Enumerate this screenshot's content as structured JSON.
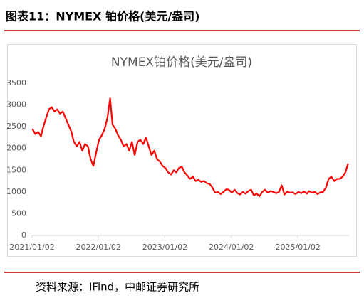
{
  "header": "图表11：NYMEX 铂价格(美元/盎司)",
  "source": "资料来源：IFind，中邮证券研究所",
  "chart_data": {
    "type": "line",
    "title": "NYMEX铂价格(美元/盎司)",
    "x": [
      "2021/01/04",
      "2021/01/20",
      "2021/02/05",
      "2021/02/20",
      "2021/03/05",
      "2021/03/20",
      "2021/04/05",
      "2021/04/20",
      "2021/05/05",
      "2021/05/20",
      "2021/06/05",
      "2021/06/20",
      "2021/07/05",
      "2021/07/20",
      "2021/08/05",
      "2021/08/20",
      "2021/09/05",
      "2021/09/20",
      "2021/10/05",
      "2021/10/20",
      "2021/11/05",
      "2021/11/20",
      "2021/12/05",
      "2021/12/20",
      "2022/01/05",
      "2022/01/20",
      "2022/02/05",
      "2022/02/20",
      "2022/03/07",
      "2022/03/20",
      "2022/04/05",
      "2022/04/20",
      "2022/05/05",
      "2022/05/20",
      "2022/06/05",
      "2022/06/20",
      "2022/07/05",
      "2022/07/20",
      "2022/08/05",
      "2022/08/20",
      "2022/09/05",
      "2022/09/20",
      "2022/10/05",
      "2022/10/20",
      "2022/11/05",
      "2022/11/20",
      "2022/12/05",
      "2022/12/20",
      "2023/01/05",
      "2023/01/20",
      "2023/02/05",
      "2023/02/20",
      "2023/03/05",
      "2023/03/20",
      "2023/04/05",
      "2023/04/20",
      "2023/05/05",
      "2023/05/20",
      "2023/06/05",
      "2023/06/20",
      "2023/07/05",
      "2023/07/20",
      "2023/08/05",
      "2023/08/20",
      "2023/09/05",
      "2023/09/20",
      "2023/10/05",
      "2023/10/20",
      "2023/11/05",
      "2023/11/20",
      "2023/12/05",
      "2023/12/20",
      "2024/01/05",
      "2024/01/20",
      "2024/02/05",
      "2024/02/20",
      "2024/03/05",
      "2024/03/20",
      "2024/04/05",
      "2024/04/20",
      "2024/05/05",
      "2024/05/20",
      "2024/06/05",
      "2024/06/20",
      "2024/07/05",
      "2024/07/20",
      "2024/08/05",
      "2024/08/20",
      "2024/09/05",
      "2024/09/20",
      "2024/10/05",
      "2024/10/20",
      "2024/11/05",
      "2024/11/20",
      "2024/12/05",
      "2024/12/20",
      "2025/01/05",
      "2025/01/20",
      "2025/02/05",
      "2025/02/20",
      "2025/03/05",
      "2025/03/20",
      "2025/04/05",
      "2025/04/20",
      "2025/05/05",
      "2025/05/20",
      "2025/06/05",
      "2025/06/20",
      "2025/07/05",
      "2025/07/20",
      "2025/08/05",
      "2025/08/20",
      "2025/09/05",
      "2025/09/20",
      "2025/10/05"
    ],
    "series": [
      {
        "name": "NYMEX铂价格",
        "color": "#ff0000",
        "values": [
          2450,
          2330,
          2380,
          2280,
          2500,
          2700,
          2900,
          2950,
          2850,
          2900,
          2800,
          2850,
          2700,
          2550,
          2400,
          2150,
          2050,
          2150,
          1950,
          2100,
          2050,
          1750,
          1600,
          1900,
          2200,
          2300,
          2450,
          2700,
          3150,
          2550,
          2450,
          2300,
          2200,
          2050,
          2100,
          1950,
          2150,
          1850,
          2150,
          2200,
          2100,
          2250,
          2050,
          1850,
          1950,
          1750,
          1700,
          1600,
          1550,
          1450,
          1400,
          1500,
          1450,
          1550,
          1580,
          1450,
          1380,
          1300,
          1350,
          1250,
          1280,
          1230,
          1250,
          1200,
          1180,
          1100,
          980,
          1000,
          950,
          1000,
          1060,
          1050,
          980,
          1050,
          970,
          940,
          1000,
          960,
          1020,
          1050,
          920,
          960,
          900,
          1000,
          1050,
          980,
          1020,
          1000,
          970,
          1000,
          1150,
          940,
          1010,
          980,
          990,
          950,
          1000,
          970,
          1010,
          960,
          1020,
          980,
          1000,
          950,
          990,
          1000,
          1100,
          1300,
          1350,
          1250,
          1300,
          1300,
          1350,
          1450,
          1650
        ]
      }
    ],
    "xlim": [
      "2021/01/02",
      "2025/10/10"
    ],
    "xticks": [
      "2021/01/02",
      "2022/01/02",
      "2023/01/02",
      "2024/01/02",
      "2025/01/02"
    ],
    "ylim": [
      0,
      3500
    ],
    "yticks": [
      0,
      500,
      1000,
      1500,
      2000,
      2500,
      3000,
      3500
    ]
  }
}
